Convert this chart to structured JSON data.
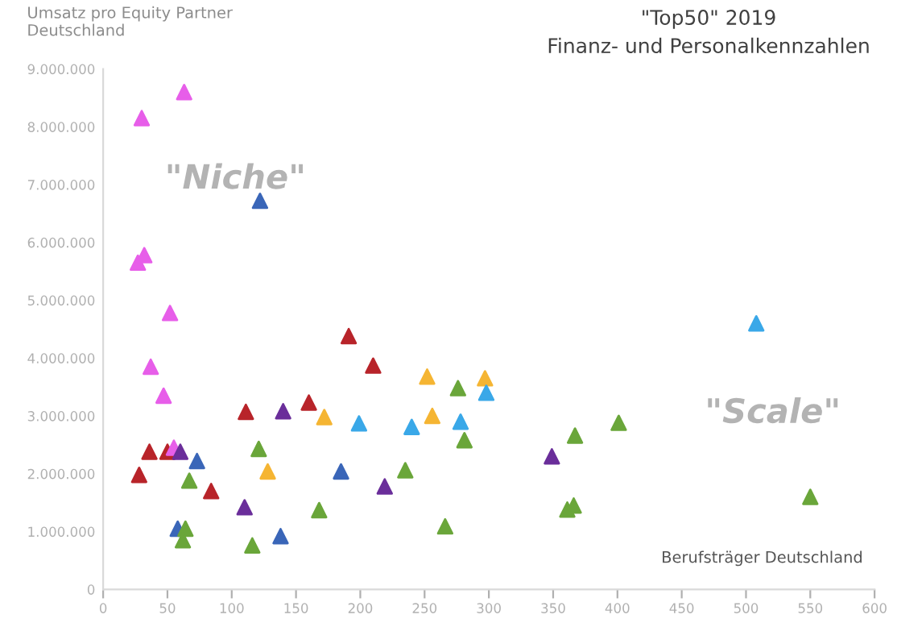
{
  "chart_data": {
    "type": "scatter",
    "title": "\"Top50\" 2019",
    "subtitle": "Finanz- und Personalkennzahlen",
    "ylabel": "Umsatz pro Equity Partner\nDeutschland",
    "xlabel": "Berufsträger Deutschland",
    "annotations": [
      "\"Niche\"",
      "\"Scale\""
    ],
    "marker": "triangle",
    "grid": false,
    "xlim": [
      0,
      600
    ],
    "xticks": [
      0,
      50,
      100,
      150,
      200,
      250,
      300,
      350,
      400,
      450,
      500,
      550,
      600
    ],
    "ylim": [
      0,
      9000000
    ],
    "yticks": [
      {
        "value": 0,
        "label": "0"
      },
      {
        "value": 1000000,
        "label": "1.000.000"
      },
      {
        "value": 2000000,
        "label": "2.000.000"
      },
      {
        "value": 3000000,
        "label": "3.000.000"
      },
      {
        "value": 4000000,
        "label": "4.000.000"
      },
      {
        "value": 5000000,
        "label": "5.000.000"
      },
      {
        "value": 6000000,
        "label": "6.000.000"
      },
      {
        "value": 7000000,
        "label": "7.000.000"
      },
      {
        "value": 8000000,
        "label": "8.000.000"
      },
      {
        "value": 9000000,
        "label": "9.000.000"
      }
    ],
    "series": [
      {
        "color": "#b8242a",
        "x": [
          28,
          36,
          50,
          84,
          111,
          160,
          191,
          210
        ],
        "values": [
          1980000,
          2380000,
          2380000,
          1700000,
          3070000,
          3230000,
          4380000,
          3870000
        ]
      },
      {
        "color": "#e75ee9",
        "x": [
          30,
          63,
          27,
          32,
          52,
          37,
          47,
          55
        ],
        "values": [
          8150000,
          8600000,
          5650000,
          5780000,
          4780000,
          3850000,
          3350000,
          2450000
        ]
      },
      {
        "color": "#6a2e9a",
        "x": [
          60,
          110,
          140,
          219,
          349
        ],
        "values": [
          2380000,
          1420000,
          3080000,
          1780000,
          2300000
        ]
      },
      {
        "color": "#3a66b8",
        "x": [
          122,
          73,
          58,
          138,
          185
        ],
        "values": [
          6720000,
          2220000,
          1050000,
          920000,
          2040000
        ]
      },
      {
        "color": "#6aa63a",
        "x": [
          67,
          64,
          62,
          121,
          116,
          168,
          235,
          266,
          276,
          281,
          367,
          401,
          361,
          366,
          550
        ],
        "values": [
          1880000,
          1050000,
          850000,
          2430000,
          760000,
          1370000,
          2060000,
          1090000,
          3480000,
          2580000,
          2660000,
          2880000,
          1380000,
          1450000,
          1600000
        ]
      },
      {
        "color": "#f5b533",
        "x": [
          128,
          172,
          252,
          256,
          297
        ],
        "values": [
          2040000,
          2980000,
          3680000,
          3000000,
          3650000
        ]
      },
      {
        "color": "#3aa8e8",
        "x": [
          199,
          240,
          278,
          298,
          508
        ],
        "values": [
          2870000,
          2810000,
          2900000,
          3400000,
          4600000
        ]
      }
    ]
  }
}
